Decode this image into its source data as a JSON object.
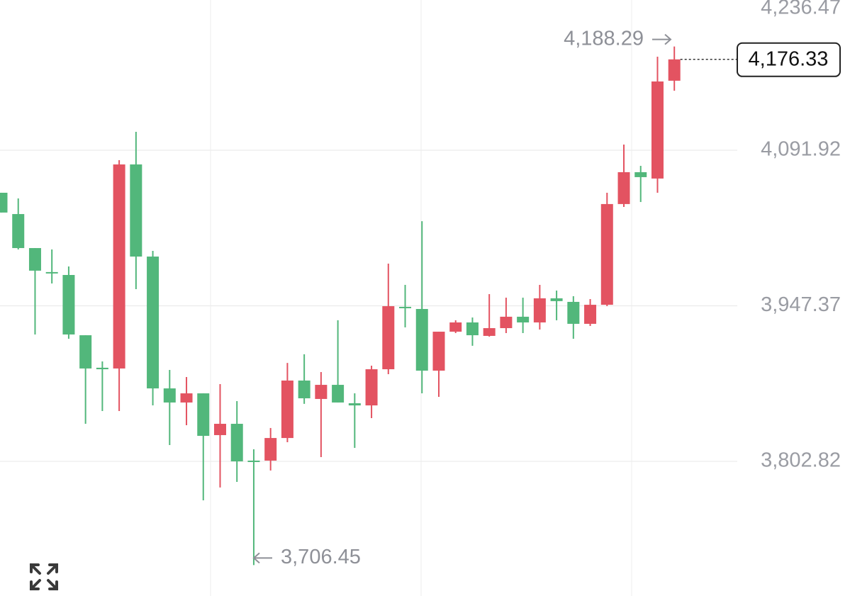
{
  "chart_data": {
    "type": "candlestick",
    "open": [
      4052.4,
      4032.6,
      4001.0,
      3978.7,
      3976.0,
      3920.0,
      3889.8,
      3889.1,
      4078.7,
      3993.1,
      3870.6,
      3857.5,
      3866.0,
      3827.2,
      3837.7,
      3803.5,
      3803.5,
      3824.5,
      3877.9,
      3860.8,
      3873.9,
      3856.8,
      3854.8,
      3888.4,
      3946.4,
      3944.4,
      3887.1,
      3923.3,
      3931.9,
      3919.4,
      3926.6,
      3937.2,
      3931.9,
      3954.3,
      3951.0,
      3930.6,
      3948.3,
      4041.9,
      4071.5,
      4065.6,
      4156.5
    ],
    "high": [
      4052.4,
      4047.1,
      4001.0,
      3999.7,
      3983.9,
      3920.0,
      3895.7,
      4082.7,
      4109.0,
      3998.4,
      3887.8,
      3881.2,
      3866.0,
      3874.6,
      3858.8,
      3814.0,
      3833.8,
      3894.3,
      3902.3,
      3885.8,
      3933.9,
      3866.0,
      3891.7,
      3986.5,
      3966.8,
      4026.0,
      3923.3,
      3933.9,
      3936.5,
      3958.2,
      3954.9,
      3954.9,
      3966.8,
      3961.5,
      3956.3,
      3953.6,
      4052.4,
      4097.2,
      4077.4,
      4178.8,
      4188.29
    ],
    "low": [
      4034.0,
      3999.7,
      3920.7,
      3968.1,
      3916.7,
      3837.7,
      3849.6,
      3849.6,
      3962.8,
      3854.8,
      3818.0,
      3836.4,
      3766.6,
      3778.5,
      3783.7,
      3706.45,
      3794.3,
      3820.6,
      3856.2,
      3806.8,
      3857.5,
      3815.3,
      3843.0,
      3883.8,
      3927.3,
      3866.0,
      3862.7,
      3922.0,
      3910.2,
      3918.7,
      3922.0,
      3922.0,
      3925.3,
      3933.9,
      3916.7,
      3928.6,
      3947.0,
      4039.2,
      4043.8,
      4052.4,
      4147.2
    ],
    "close": [
      4034.0,
      4001.0,
      3980.0,
      3977.4,
      3920.7,
      3889.1,
      3888.4,
      4078.7,
      3993.1,
      3870.6,
      3857.5,
      3866.0,
      3826.5,
      3837.7,
      3802.8,
      3802.2,
      3824.5,
      3877.9,
      3861.4,
      3873.9,
      3857.5,
      3854.8,
      3888.4,
      3947.0,
      3945.1,
      3887.1,
      3923.3,
      3931.9,
      3920.0,
      3926.6,
      3937.2,
      3931.9,
      3954.3,
      3951.7,
      3930.6,
      3948.3,
      4041.9,
      4071.5,
      4066.9,
      4155.8,
      4176.33
    ],
    "up_color": "#e35361",
    "down_color": "#52b77b",
    "ylim": [
      3677.7,
      4231.5
    ],
    "yticks": [
      {
        "value": 3802.82,
        "label": "3,802.82"
      },
      {
        "value": 3947.37,
        "label": "3,947.37"
      },
      {
        "value": 4091.92,
        "label": "4,091.92"
      },
      {
        "value": 4236.47,
        "label": "4,236.47"
      }
    ],
    "grid": true,
    "high_label": {
      "value": 4188.29,
      "label": "4,188.29"
    },
    "low_label": {
      "value": 3706.45,
      "label": "3,706.45"
    },
    "last_price": {
      "value": 4176.33,
      "label": "4,176.33"
    }
  }
}
